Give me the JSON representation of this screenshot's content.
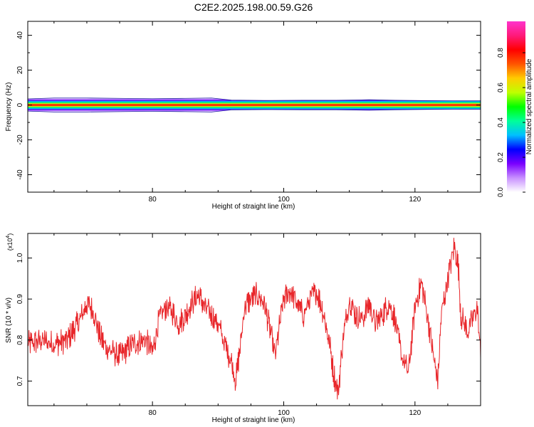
{
  "title": "C2E2.2025.198.00.59.G26",
  "chart_data": [
    {
      "type": "heatmap",
      "xlabel": "Height of straight line (km)",
      "ylabel": "Frequency (Hz)",
      "xlim": [
        61,
        130
      ],
      "ylim": [
        -50,
        48
      ],
      "xticks": [
        80,
        100,
        120
      ],
      "yticks": [
        40,
        20,
        0,
        -20,
        -40
      ],
      "band_center_hz": 0,
      "band_halfwidth_hz": [
        [
          61,
          3.5
        ],
        [
          65,
          4.0
        ],
        [
          70,
          4.0
        ],
        [
          75,
          3.8
        ],
        [
          80,
          3.6
        ],
        [
          85,
          3.8
        ],
        [
          89,
          4.0
        ],
        [
          92,
          2.8
        ],
        [
          97,
          2.6
        ],
        [
          103,
          2.7
        ],
        [
          108,
          2.7
        ],
        [
          113,
          3.0
        ],
        [
          117,
          2.7
        ],
        [
          122,
          2.5
        ],
        [
          127,
          2.4
        ],
        [
          130,
          2.4
        ]
      ],
      "colorbar": {
        "label": "Normalized spectral amplitude",
        "ticks": [
          "0.0",
          "0.2",
          "0.4",
          "0.6",
          "0.8"
        ],
        "range": [
          0,
          0.98
        ],
        "colors": [
          "#ffffff",
          "#c890ff",
          "#7a00ff",
          "#0000ff",
          "#00bfff",
          "#00ff99",
          "#00ff00",
          "#bfff00",
          "#ffcc00",
          "#ff5500",
          "#ff0000",
          "#ff1a7a",
          "#ff33cc"
        ]
      },
      "grid": false
    },
    {
      "type": "line",
      "xlabel": "Height of straight line (km)",
      "ylabel": "SNR (10 * v/v)",
      "y_multiplier_label": "(x10",
      "y_multiplier_exp": "4",
      "y_multiplier_close": ")",
      "xlim": [
        61,
        130
      ],
      "ylim": [
        0.64,
        1.06
      ],
      "xticks": [
        80,
        100,
        120
      ],
      "yticks": [
        "0.7",
        "0.8",
        "0.9",
        "1.0"
      ],
      "series_color": "#e8262a",
      "series": [
        {
          "x": [
            61,
            63,
            65,
            67,
            69,
            70,
            71,
            72,
            73,
            75,
            77,
            79,
            80,
            81,
            82,
            83,
            84,
            85,
            86,
            87,
            88,
            89,
            90,
            91,
            92,
            92.7,
            93.5,
            94,
            95,
            96,
            97,
            98,
            98.7,
            99.5,
            100,
            101,
            102,
            103,
            104,
            105,
            106,
            107,
            107.6,
            108.3,
            109,
            110,
            111,
            112,
            113,
            114,
            115,
            116,
            117,
            117.5,
            118,
            119,
            120,
            121,
            122,
            123,
            123.5,
            124,
            125,
            126,
            126.6,
            127,
            128,
            129,
            129.5,
            130
          ],
          "y": [
            0.79,
            0.8,
            0.79,
            0.8,
            0.85,
            0.89,
            0.87,
            0.81,
            0.78,
            0.76,
            0.79,
            0.8,
            0.77,
            0.85,
            0.88,
            0.87,
            0.84,
            0.86,
            0.89,
            0.91,
            0.88,
            0.86,
            0.84,
            0.79,
            0.75,
            0.7,
            0.8,
            0.88,
            0.9,
            0.91,
            0.89,
            0.82,
            0.76,
            0.85,
            0.9,
            0.92,
            0.89,
            0.86,
            0.9,
            0.92,
            0.87,
            0.79,
            0.72,
            0.67,
            0.8,
            0.9,
            0.86,
            0.85,
            0.89,
            0.84,
            0.86,
            0.89,
            0.85,
            0.8,
            0.76,
            0.72,
            0.88,
            0.94,
            0.85,
            0.74,
            0.7,
            0.86,
            0.95,
            1.03,
            0.98,
            0.86,
            0.82,
            0.86,
            0.88,
            0.76
          ]
        }
      ],
      "grid": false
    }
  ]
}
